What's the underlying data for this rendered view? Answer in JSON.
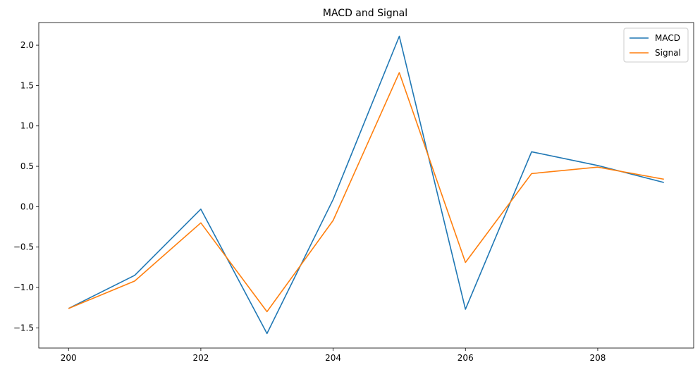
{
  "chart_data": {
    "type": "line",
    "title": "MACD and Signal",
    "xlabel": "",
    "ylabel": "",
    "x": [
      200,
      201,
      202,
      203,
      204,
      205,
      206,
      207,
      208,
      209
    ],
    "xlim": [
      199.55,
      209.45
    ],
    "ylim": [
      -1.75,
      2.28
    ],
    "xticks": [
      200,
      202,
      204,
      206,
      208
    ],
    "yticks": [
      -1.5,
      -1.0,
      -0.5,
      0.0,
      0.5,
      1.0,
      1.5,
      2.0
    ],
    "xtick_labels": [
      "200",
      "202",
      "204",
      "206",
      "208"
    ],
    "ytick_labels": [
      "−1.5",
      "−1.0",
      "−0.5",
      "0.0",
      "0.5",
      "1.0",
      "1.5",
      "2.0"
    ],
    "grid": false,
    "legend_position": "top-right",
    "series": [
      {
        "name": "MACD",
        "color": "#1f77b4",
        "values": [
          -1.26,
          -0.85,
          -0.03,
          -1.57,
          0.09,
          2.11,
          -1.27,
          0.68,
          0.51,
          0.3
        ]
      },
      {
        "name": "Signal",
        "color": "#ff7f0e",
        "values": [
          -1.26,
          -0.92,
          -0.2,
          -1.3,
          -0.17,
          1.66,
          -0.69,
          0.41,
          0.49,
          0.34
        ]
      }
    ]
  }
}
